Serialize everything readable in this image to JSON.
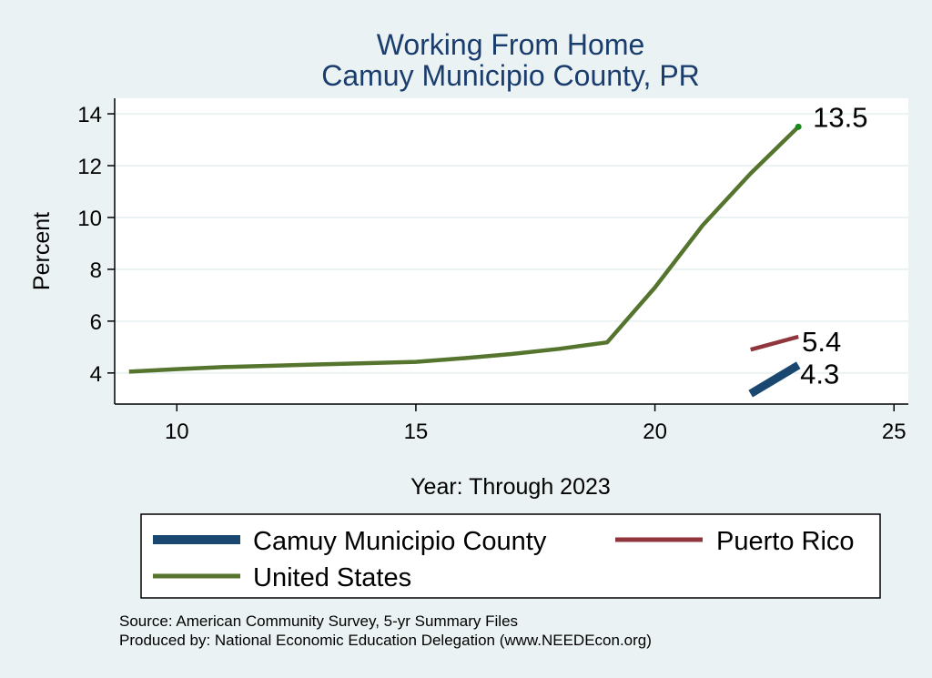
{
  "chart_data": {
    "type": "line",
    "title": [
      "Working From Home",
      "Camuy Municipio County, PR"
    ],
    "xlabel": "Year: Through 2023",
    "ylabel": "Percent",
    "xlim": [
      8.7,
      25.3
    ],
    "ylim": [
      2.8,
      14.6
    ],
    "xticks": [
      10,
      15,
      20,
      25
    ],
    "yticks": [
      4,
      6,
      8,
      10,
      12,
      14
    ],
    "grid": true,
    "series": [
      {
        "name": "Camuy Municipio County",
        "color": "#1a476f",
        "x": [
          22,
          23
        ],
        "y": [
          3.2,
          4.3
        ],
        "end_label": "4.3"
      },
      {
        "name": "Puerto Rico",
        "color": "#90353b",
        "x": [
          22,
          23
        ],
        "y": [
          4.9,
          5.4
        ],
        "end_label": "5.4"
      },
      {
        "name": "United States",
        "color": "#55752f",
        "x": [
          9,
          10,
          11,
          12,
          13,
          14,
          15,
          16,
          17,
          18,
          19,
          20,
          21,
          22,
          23
        ],
        "y": [
          4.05,
          4.15,
          4.23,
          4.28,
          4.33,
          4.38,
          4.43,
          4.57,
          4.73,
          4.93,
          5.18,
          7.3,
          9.7,
          11.7,
          13.5
        ],
        "end_label": "13.5"
      }
    ],
    "legend": {
      "position": "bottom",
      "entries": [
        "Camuy Municipio County",
        "Puerto Rico",
        "United States"
      ]
    },
    "notes": [
      "Source: American Community Survey, 5-yr Summary Files",
      "Produced by: National Economic Education Delegation (www.NEEDEcon.org)"
    ]
  }
}
